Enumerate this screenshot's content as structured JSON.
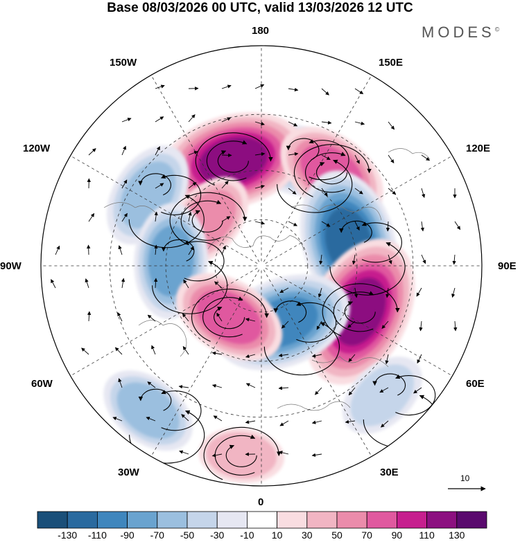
{
  "header": {
    "title": "Base 08/03/2026 00 UTC, valid 13/03/2026 12 UTC",
    "brand": "MODES",
    "brand_mark": "©"
  },
  "map": {
    "projection": "north-polar-stereographic",
    "longitude_labels": {
      "n180": "180",
      "e150": "150E",
      "e120": "120E",
      "e90": "90E",
      "e60": "60E",
      "e30": "30E",
      "s0": "0",
      "w30": "30W",
      "w60": "60W",
      "w90": "90W",
      "w120": "120W",
      "w150": "150W"
    },
    "reference_vector_label": "10",
    "anomaly_cells": [
      {
        "name": "low-150w",
        "value": -70,
        "lon": 162,
        "lat": 44
      },
      {
        "name": "high-165e",
        "value": 120,
        "lon": 195,
        "lat": 45
      },
      {
        "name": "low-130e",
        "value": -70,
        "lon": 238,
        "lat": 36
      },
      {
        "name": "high-120w",
        "value": 80,
        "lon": 143,
        "lat": 42
      },
      {
        "name": "high-110e",
        "value": 60,
        "lon": 230,
        "lat": 60
      },
      {
        "name": "low-90w",
        "value": -120,
        "lon": 105,
        "lat": 52
      },
      {
        "name": "low-90e",
        "value": -80,
        "lon": 267,
        "lat": 52
      },
      {
        "name": "high-60w",
        "value": 130,
        "lon": 65,
        "lat": 45
      },
      {
        "name": "low-20w",
        "value": -110,
        "lon": 21,
        "lat": 64
      },
      {
        "name": "high-50e",
        "value": 80,
        "lon": 328,
        "lat": 64
      },
      {
        "name": "low-30e",
        "value": -60,
        "lon": 322,
        "lat": 20
      },
      {
        "name": "high-10e",
        "value": 40,
        "lon": 354,
        "lat": 18
      },
      {
        "name": "low-60w-south",
        "value": -50,
        "lon": 43,
        "lat": 22
      }
    ]
  },
  "colorbar": {
    "labels": [
      "-130",
      "-110",
      "-90",
      "-70",
      "-50",
      "-30",
      "-10",
      "10",
      "30",
      "50",
      "70",
      "90",
      "110",
      "130"
    ],
    "colors": [
      "#1a4f79",
      "#2a6a9f",
      "#3f86bd",
      "#6aa3cf",
      "#9bbfdf",
      "#c5d5ea",
      "#e6e7f2",
      "#ffffff",
      "#f9dde1",
      "#f1b5c3",
      "#eb8cab",
      "#e0599f",
      "#c61f8e",
      "#8c1080",
      "#5a0a6e"
    ]
  }
}
